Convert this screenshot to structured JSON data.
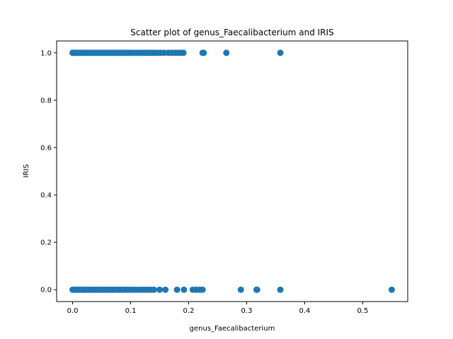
{
  "chart_data": {
    "type": "scatter",
    "title": "Scatter plot of genus_Faecalibacterium and IRIS",
    "xlabel": "genus_Faecalibacterium",
    "ylabel": "IRIS",
    "xlim": [
      -0.0275,
      0.5775
    ],
    "ylim": [
      -0.05,
      1.05
    ],
    "xticks": [
      {
        "value": 0.0,
        "label": "0.0"
      },
      {
        "value": 0.1,
        "label": "0.1"
      },
      {
        "value": 0.2,
        "label": "0.2"
      },
      {
        "value": 0.3,
        "label": "0.3"
      },
      {
        "value": 0.4,
        "label": "0.4"
      },
      {
        "value": 0.5,
        "label": "0.5"
      }
    ],
    "yticks": [
      {
        "value": 0.0,
        "label": "0.0"
      },
      {
        "value": 0.2,
        "label": "0.2"
      },
      {
        "value": 0.4,
        "label": "0.4"
      },
      {
        "value": 0.6,
        "label": "0.6"
      },
      {
        "value": 0.8,
        "label": "0.8"
      },
      {
        "value": 1.0,
        "label": "1.0"
      }
    ],
    "grid": false,
    "marker_color": "#1f77b4",
    "series": [
      {
        "values": [
          {
            "x": 0.0,
            "y": 1
          },
          {
            "x": 0.002,
            "y": 1
          },
          {
            "x": 0.004,
            "y": 1
          },
          {
            "x": 0.006,
            "y": 1
          },
          {
            "x": 0.009,
            "y": 1
          },
          {
            "x": 0.012,
            "y": 1
          },
          {
            "x": 0.015,
            "y": 1
          },
          {
            "x": 0.018,
            "y": 1
          },
          {
            "x": 0.021,
            "y": 1
          },
          {
            "x": 0.024,
            "y": 1
          },
          {
            "x": 0.027,
            "y": 1
          },
          {
            "x": 0.03,
            "y": 1
          },
          {
            "x": 0.034,
            "y": 1
          },
          {
            "x": 0.037,
            "y": 1
          },
          {
            "x": 0.04,
            "y": 1
          },
          {
            "x": 0.044,
            "y": 1
          },
          {
            "x": 0.047,
            "y": 1
          },
          {
            "x": 0.05,
            "y": 1
          },
          {
            "x": 0.053,
            "y": 1
          },
          {
            "x": 0.056,
            "y": 1
          },
          {
            "x": 0.06,
            "y": 1
          },
          {
            "x": 0.063,
            "y": 1
          },
          {
            "x": 0.066,
            "y": 1
          },
          {
            "x": 0.07,
            "y": 1
          },
          {
            "x": 0.073,
            "y": 1
          },
          {
            "x": 0.077,
            "y": 1
          },
          {
            "x": 0.081,
            "y": 1
          },
          {
            "x": 0.085,
            "y": 1
          },
          {
            "x": 0.089,
            "y": 1
          },
          {
            "x": 0.093,
            "y": 1
          },
          {
            "x": 0.097,
            "y": 1
          },
          {
            "x": 0.101,
            "y": 1
          },
          {
            "x": 0.106,
            "y": 1
          },
          {
            "x": 0.111,
            "y": 1
          },
          {
            "x": 0.116,
            "y": 1
          },
          {
            "x": 0.121,
            "y": 1
          },
          {
            "x": 0.126,
            "y": 1
          },
          {
            "x": 0.13,
            "y": 1
          },
          {
            "x": 0.134,
            "y": 1
          },
          {
            "x": 0.138,
            "y": 1
          },
          {
            "x": 0.142,
            "y": 1
          },
          {
            "x": 0.147,
            "y": 1
          },
          {
            "x": 0.152,
            "y": 1
          },
          {
            "x": 0.158,
            "y": 1
          },
          {
            "x": 0.165,
            "y": 1
          },
          {
            "x": 0.171,
            "y": 1
          },
          {
            "x": 0.177,
            "y": 1
          },
          {
            "x": 0.182,
            "y": 1
          },
          {
            "x": 0.187,
            "y": 1
          },
          {
            "x": 0.191,
            "y": 1
          },
          {
            "x": 0.224,
            "y": 1
          },
          {
            "x": 0.226,
            "y": 1
          },
          {
            "x": 0.265,
            "y": 1
          },
          {
            "x": 0.358,
            "y": 1
          },
          {
            "x": 0.0,
            "y": 0
          },
          {
            "x": 0.003,
            "y": 0
          },
          {
            "x": 0.006,
            "y": 0
          },
          {
            "x": 0.009,
            "y": 0
          },
          {
            "x": 0.012,
            "y": 0
          },
          {
            "x": 0.016,
            "y": 0
          },
          {
            "x": 0.019,
            "y": 0
          },
          {
            "x": 0.022,
            "y": 0
          },
          {
            "x": 0.025,
            "y": 0
          },
          {
            "x": 0.029,
            "y": 0
          },
          {
            "x": 0.033,
            "y": 0
          },
          {
            "x": 0.037,
            "y": 0
          },
          {
            "x": 0.041,
            "y": 0
          },
          {
            "x": 0.045,
            "y": 0
          },
          {
            "x": 0.049,
            "y": 0
          },
          {
            "x": 0.053,
            "y": 0
          },
          {
            "x": 0.057,
            "y": 0
          },
          {
            "x": 0.061,
            "y": 0
          },
          {
            "x": 0.065,
            "y": 0
          },
          {
            "x": 0.069,
            "y": 0
          },
          {
            "x": 0.073,
            "y": 0
          },
          {
            "x": 0.077,
            "y": 0
          },
          {
            "x": 0.081,
            "y": 0
          },
          {
            "x": 0.085,
            "y": 0
          },
          {
            "x": 0.089,
            "y": 0
          },
          {
            "x": 0.094,
            "y": 0
          },
          {
            "x": 0.099,
            "y": 0
          },
          {
            "x": 0.104,
            "y": 0
          },
          {
            "x": 0.109,
            "y": 0
          },
          {
            "x": 0.115,
            "y": 0
          },
          {
            "x": 0.12,
            "y": 0
          },
          {
            "x": 0.125,
            "y": 0
          },
          {
            "x": 0.13,
            "y": 0
          },
          {
            "x": 0.135,
            "y": 0
          },
          {
            "x": 0.14,
            "y": 0
          },
          {
            "x": 0.15,
            "y": 0
          },
          {
            "x": 0.16,
            "y": 0
          },
          {
            "x": 0.18,
            "y": 0
          },
          {
            "x": 0.192,
            "y": 0
          },
          {
            "x": 0.207,
            "y": 0
          },
          {
            "x": 0.213,
            "y": 0
          },
          {
            "x": 0.219,
            "y": 0
          },
          {
            "x": 0.224,
            "y": 0
          },
          {
            "x": 0.29,
            "y": 0
          },
          {
            "x": 0.317,
            "y": 0
          },
          {
            "x": 0.318,
            "y": 0
          },
          {
            "x": 0.358,
            "y": 0
          },
          {
            "x": 0.55,
            "y": 0
          }
        ]
      }
    ]
  }
}
